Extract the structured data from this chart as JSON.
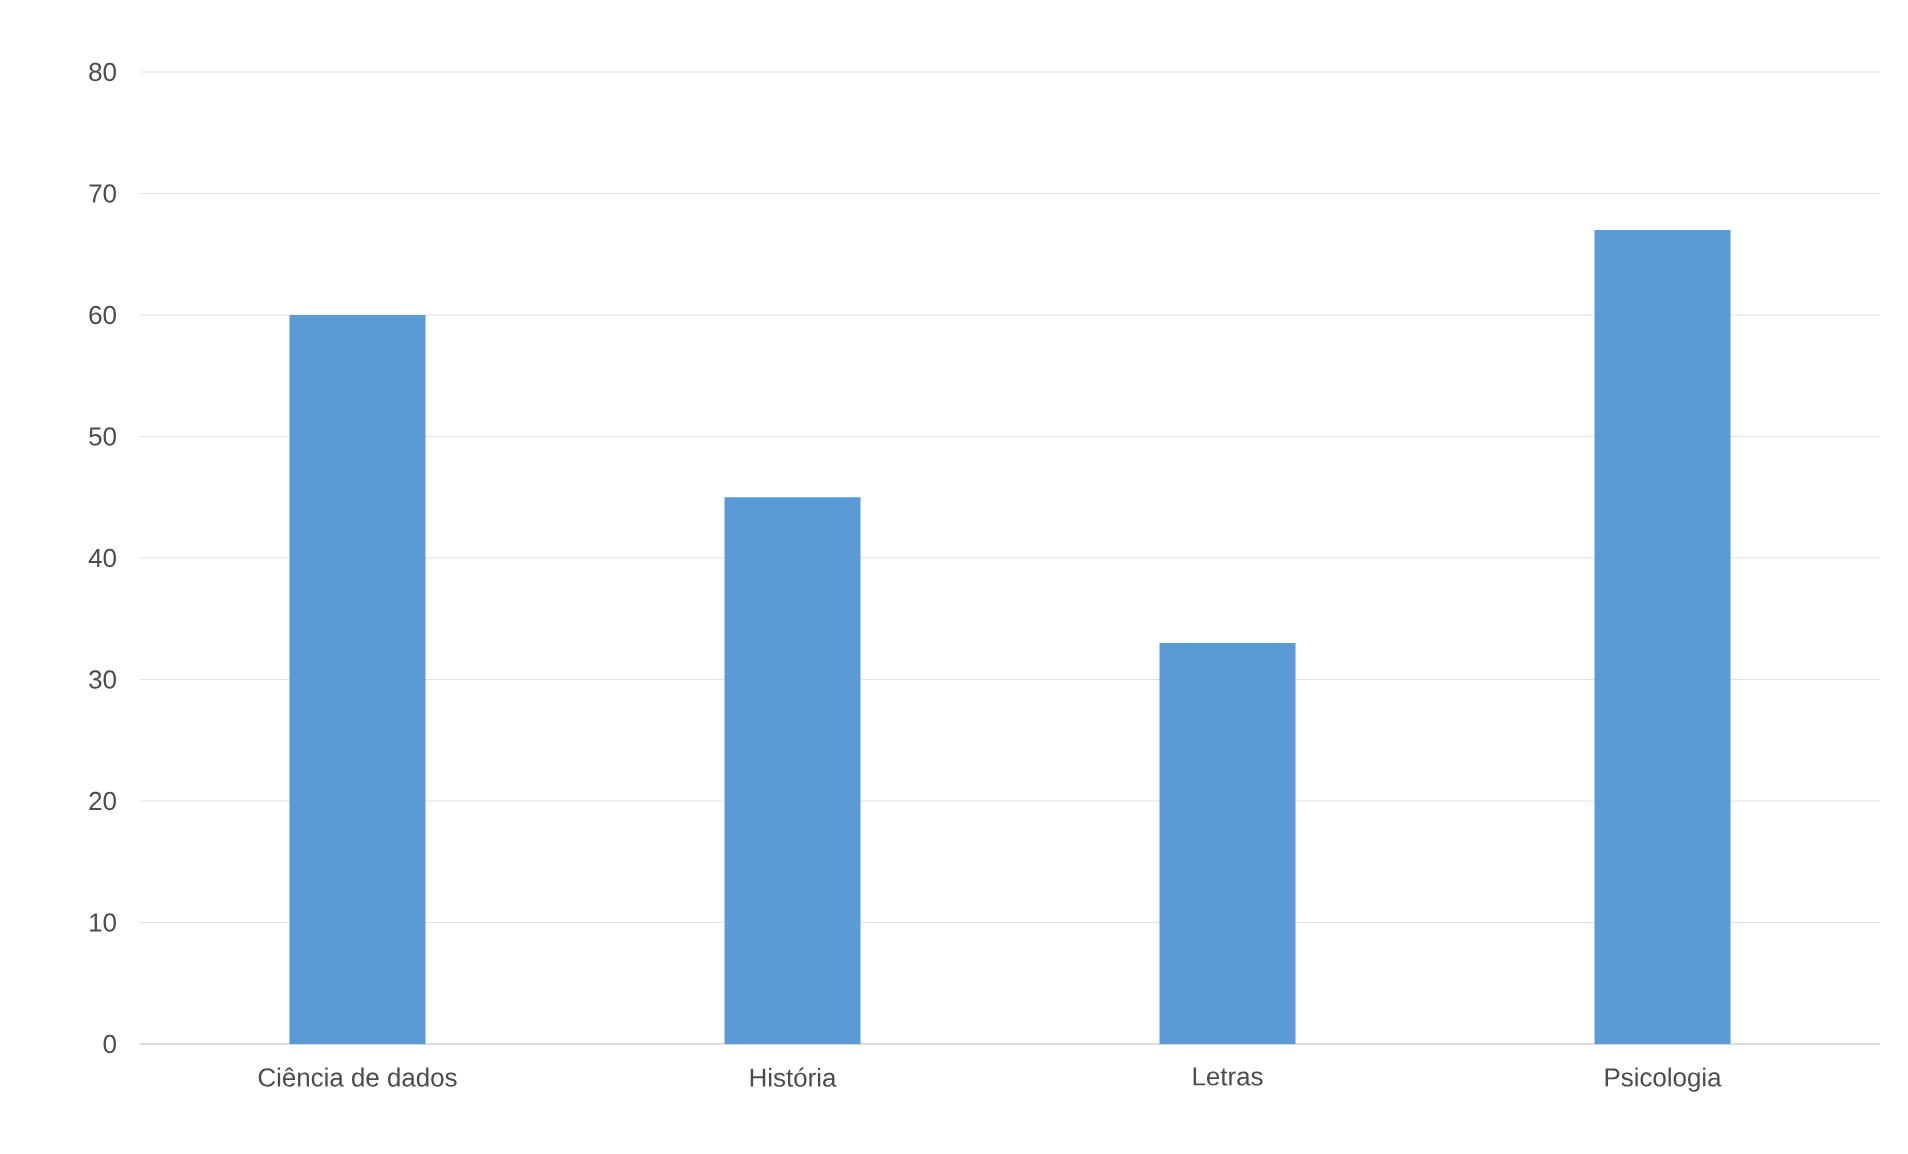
{
  "chart_data": {
    "type": "bar",
    "categories": [
      "Ciência de dados",
      "História",
      "Letras",
      "Psicologia"
    ],
    "values": [
      60,
      45,
      33,
      67
    ],
    "color": "#5b9bd5",
    "ylim": [
      0,
      80
    ],
    "yticks": [
      0,
      10,
      20,
      30,
      40,
      50,
      60,
      70,
      80
    ],
    "grid": "y"
  }
}
